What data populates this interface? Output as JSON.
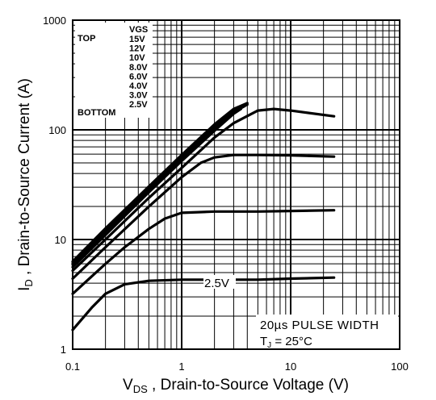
{
  "chart_data": {
    "type": "line",
    "x_scale": "log",
    "y_scale": "log",
    "xlim": [
      0.1,
      100
    ],
    "ylim": [
      1,
      1000
    ],
    "grid": true,
    "xlabel_main": "V",
    "xlabel_sub": "DS",
    "xlabel_rest": " , Drain-to-Source Voltage (V)",
    "ylabel_main": "I",
    "ylabel_sub": "D",
    "ylabel_rest": " , Drain-to-Source Current (A)",
    "x_ticks": [
      {
        "value": 0.1,
        "label": "0.1"
      },
      {
        "value": 1,
        "label": "1"
      },
      {
        "value": 10,
        "label": "10"
      },
      {
        "value": 100,
        "label": "100"
      }
    ],
    "y_ticks": [
      {
        "value": 1,
        "label": "1"
      },
      {
        "value": 10,
        "label": "10"
      },
      {
        "value": 100,
        "label": "100"
      },
      {
        "value": 1000,
        "label": "1000"
      }
    ],
    "legend": {
      "header": "VGS",
      "top_label": "TOP",
      "bottom_label": "BOTTOM",
      "entries": [
        "15V",
        "12V",
        "10V",
        "8.0V",
        "6.0V",
        "4.0V",
        "3.0V",
        "2.5V"
      ],
      "placement": "top-left"
    },
    "annotations": {
      "curve_label": "2.5V",
      "note_line1": "20µs PULSE WIDTH",
      "note_line2_main": "T",
      "note_line2_sub": "J",
      "note_line2_rest": " = 25°C"
    },
    "series": [
      {
        "name": "2.5V",
        "x": [
          0.1,
          0.15,
          0.2,
          0.3,
          0.5,
          1,
          2,
          5,
          10,
          25
        ],
        "y": [
          1.5,
          2.4,
          3.2,
          3.9,
          4.2,
          4.3,
          4.3,
          4.3,
          4.4,
          4.5
        ]
      },
      {
        "name": "3.0V",
        "x": [
          0.1,
          0.2,
          0.3,
          0.5,
          0.7,
          1,
          2,
          5,
          10,
          25
        ],
        "y": [
          3.2,
          6,
          8.5,
          12.5,
          15.5,
          17.5,
          18,
          18,
          18.2,
          18.5
        ]
      },
      {
        "name": "4.0V",
        "x": [
          0.1,
          0.2,
          0.5,
          1,
          1.5,
          2,
          3,
          5,
          10,
          25
        ],
        "y": [
          4.4,
          8.5,
          20,
          37,
          50,
          56,
          59,
          59,
          58.5,
          57
        ]
      },
      {
        "name": "6.0V",
        "x": [
          0.1,
          0.2,
          0.5,
          1,
          2,
          3,
          5,
          7,
          10,
          25
        ],
        "y": [
          5.2,
          10,
          24,
          45,
          85,
          115,
          150,
          155,
          150,
          133
        ]
      },
      {
        "name": "8.0V",
        "x": [
          0.1,
          0.2,
          0.5,
          1,
          2,
          3,
          3.5
        ],
        "y": [
          5.6,
          11,
          27,
          52,
          98,
          140,
          155
        ]
      },
      {
        "name": "10V",
        "x": [
          0.1,
          0.2,
          0.5,
          1,
          2,
          3,
          3.8
        ],
        "y": [
          5.9,
          11.8,
          28.5,
          55,
          104,
          145,
          165
        ]
      },
      {
        "name": "12V",
        "x": [
          0.1,
          0.2,
          0.5,
          1,
          2,
          3,
          4
        ],
        "y": [
          6.1,
          12.2,
          29.5,
          57,
          108,
          150,
          170
        ]
      },
      {
        "name": "15V",
        "x": [
          0.1,
          0.2,
          0.5,
          1,
          2,
          3,
          4
        ],
        "y": [
          6.3,
          12.6,
          30.5,
          59,
          112,
          155,
          175
        ]
      }
    ]
  }
}
